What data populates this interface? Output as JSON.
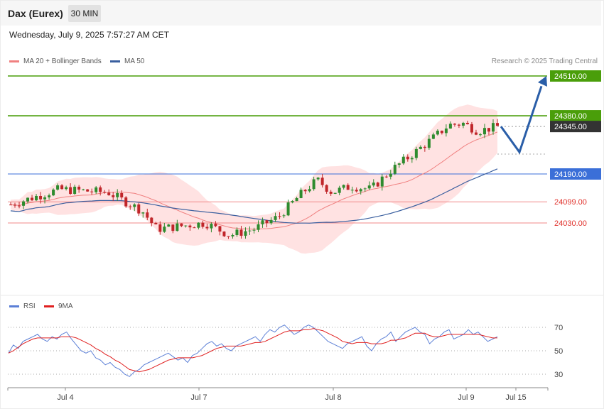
{
  "header": {
    "title": "Dax (Eurex)",
    "timeframe": "30 MIN"
  },
  "timestamp": "Wednesday, July 9, 2025 7:57:27 AM CET",
  "legend": {
    "ma20_label": "MA 20 + Bollinger Bands",
    "ma50_label": "MA 50",
    "rsi_label": "RSI",
    "rsi_ma_label": "9MA"
  },
  "credit": "Research © 2025 Trading Central",
  "colors": {
    "candle_up": "#2e8b2e",
    "candle_down": "#c0262a",
    "ma20": "#f08080",
    "bollinger_fill": "#ffd6d6",
    "ma50": "#3a5f9f",
    "resistance": "#4a9e0a",
    "support_strong": "#3b6fd8",
    "support": "#f08a8a",
    "current": "#333333",
    "arrow": "#2a5ea8",
    "rsi": "#5b7fd6",
    "rsi_ma": "#e02020"
  },
  "chart_data": {
    "type": "candlestick",
    "x_labels": [
      "Jul 4",
      "Jul 7",
      "Jul 8",
      "Jul 9",
      "Jul 15"
    ],
    "y_range": [
      23880,
      24540
    ],
    "levels": [
      {
        "value": 24510.0,
        "label": "24510.00",
        "kind": "resistance"
      },
      {
        "value": 24380.0,
        "label": "24380.00",
        "kind": "resistance"
      },
      {
        "value": 24345.0,
        "label": "24345.00",
        "kind": "current"
      },
      {
        "value": 24190.0,
        "label": "24190.00",
        "kind": "support_strong"
      },
      {
        "value": 24099.0,
        "label": "24099.00",
        "kind": "support"
      },
      {
        "value": 24030.0,
        "label": "24030.00",
        "kind": "support"
      }
    ],
    "forecast_path": [
      24345,
      24280,
      24500
    ],
    "rsi": {
      "ticks": [
        70,
        50,
        30
      ],
      "range": [
        15,
        80
      ],
      "series": [
        {
          "name": "RSI",
          "values": [
            48,
            55,
            52,
            58,
            60,
            62,
            64,
            60,
            58,
            62,
            60,
            64,
            66,
            60,
            55,
            50,
            48,
            50,
            44,
            42,
            38,
            40,
            36,
            34,
            30,
            28,
            32,
            34,
            38,
            40,
            42,
            44,
            46,
            48,
            45,
            42,
            44,
            40,
            46,
            48,
            52,
            56,
            58,
            54,
            56,
            52,
            50,
            54,
            56,
            58,
            60,
            62,
            58,
            64,
            68,
            66,
            70,
            72,
            68,
            64,
            66,
            70,
            72,
            70,
            66,
            62,
            58,
            56,
            54,
            52,
            56,
            58,
            60,
            62,
            54,
            50,
            56,
            60,
            62,
            66,
            58,
            62,
            66,
            68,
            70,
            66,
            64,
            56,
            60,
            62,
            66,
            68,
            60,
            62,
            64,
            68,
            64,
            66,
            62,
            58,
            60,
            62
          ]
        },
        {
          "name": "9MA",
          "values": [
            48,
            50,
            53,
            56,
            58,
            60,
            61,
            61,
            61,
            61,
            61,
            62,
            62,
            62,
            61,
            59,
            57,
            55,
            52,
            50,
            47,
            45,
            42,
            40,
            37,
            34,
            33,
            32,
            33,
            34,
            36,
            38,
            40,
            42,
            43,
            44,
            44,
            44,
            44,
            45,
            46,
            48,
            50,
            52,
            53,
            54,
            54,
            54,
            54,
            55,
            56,
            57,
            57,
            58,
            60,
            62,
            64,
            66,
            67,
            67,
            67,
            68,
            68,
            69,
            68,
            67,
            65,
            63,
            61,
            58,
            57,
            56,
            57,
            57,
            57,
            56,
            56,
            56,
            57,
            59,
            59,
            60,
            61,
            63,
            65,
            65,
            65,
            63,
            62,
            62,
            63,
            64,
            64,
            64,
            64,
            64,
            64,
            64,
            63,
            62,
            61,
            61
          ]
        }
      ]
    }
  }
}
